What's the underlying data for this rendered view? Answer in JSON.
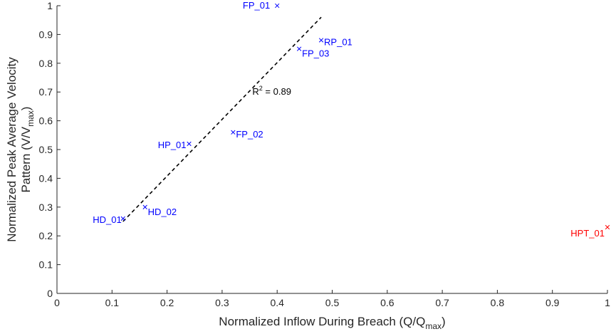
{
  "chart_data": {
    "type": "scatter",
    "title": "",
    "xlabel": {
      "main": "Normalized Inflow During Breach (Q/Q",
      "sub": "max",
      "tail": ")"
    },
    "ylabel": {
      "line1": "Normalized Peak Average Velocity",
      "line2": {
        "main": "Pattern (V/V",
        "sub": "max",
        "tail": ")"
      }
    },
    "xlim": [
      0,
      1
    ],
    "ylim": [
      0,
      1
    ],
    "x_ticks": [
      "0",
      "0.1",
      "0.2",
      "0.3",
      "0.4",
      "0.5",
      "0.6",
      "0.7",
      "0.8",
      "0.9",
      "1"
    ],
    "y_ticks": [
      "0",
      "0.1",
      "0.2",
      "0.3",
      "0.4",
      "0.5",
      "0.6",
      "0.7",
      "0.8",
      "0.9",
      "1"
    ],
    "grid": false,
    "points": [
      {
        "label": "FP_01",
        "x": 0.4,
        "y": 1.0,
        "color": "#0000ff"
      },
      {
        "label": "RP_01",
        "x": 0.48,
        "y": 0.88,
        "color": "#0000ff"
      },
      {
        "label": "FP_03",
        "x": 0.44,
        "y": 0.85,
        "color": "#0000ff"
      },
      {
        "label": "FP_02",
        "x": 0.32,
        "y": 0.56,
        "color": "#0000ff"
      },
      {
        "label": "HP_01",
        "x": 0.24,
        "y": 0.52,
        "color": "#0000ff"
      },
      {
        "label": "HD_02",
        "x": 0.16,
        "y": 0.3,
        "color": "#0000ff"
      },
      {
        "label": "HD_01",
        "x": 0.12,
        "y": 0.26,
        "color": "#0000ff"
      },
      {
        "label": "HPT_01",
        "x": 1.0,
        "y": 0.23,
        "color": "#ff0000"
      }
    ],
    "trendline": {
      "x": [
        0.12,
        0.48
      ],
      "y": [
        0.25,
        0.96
      ],
      "style": "dashed",
      "color": "#000000"
    },
    "annotation": {
      "main": "R",
      "sup": "2",
      "tail": " = 0.89",
      "x": 0.355,
      "y": 0.69
    }
  }
}
